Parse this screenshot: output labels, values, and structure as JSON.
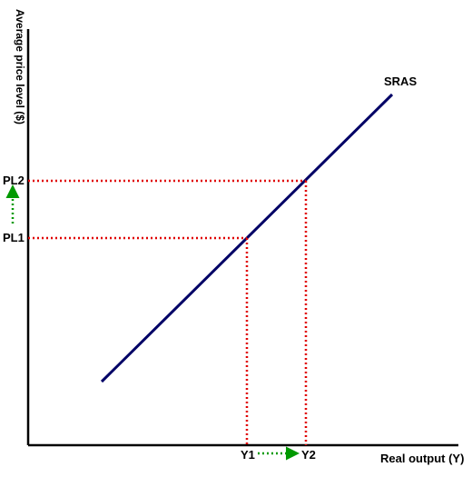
{
  "labels": {
    "y_axis": "Average price level ($)",
    "x_axis": "Real output (Y)",
    "curve": "SRAS",
    "pl1": "PL1",
    "pl2": "PL2",
    "y1": "Y1",
    "y2": "Y2"
  },
  "colors": {
    "axis": "#000000",
    "curve": "#000066",
    "guides": "#e00000",
    "arrows": "#009900"
  }
}
